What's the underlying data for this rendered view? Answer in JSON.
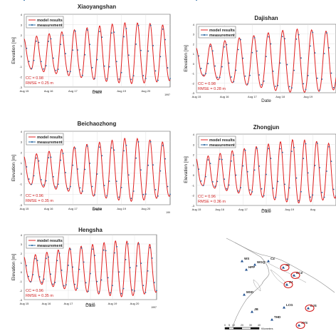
{
  "page": {
    "legend_model": "model results",
    "legend_measure": "measurement",
    "colors": {
      "model": "#e02020",
      "measure": "#2c6aa3",
      "cc_text": "#d02020",
      "grid": "#dcdcdc"
    }
  },
  "chart_data": [
    {
      "type": "line",
      "title": "Xiaoyangshan",
      "ylabel": "Elevation [m]",
      "xlabel": "Date",
      "year": "1997",
      "x_ticks": [
        "Aug 15",
        "Aug 16",
        "Aug 17",
        "Aug 18",
        "Aug 19",
        "Aug 20"
      ],
      "ylim": [
        -3,
        4
      ],
      "y_ticks": [
        "-3",
        "-2",
        "-1",
        "0",
        "1",
        "2",
        "3",
        "4"
      ],
      "cc": "CC = 0.98",
      "rmse": "RMSE = 0.25 m",
      "amp": [
        1.3,
        1.7,
        2.0,
        2.3,
        2.6,
        2.8,
        2.7,
        2.5
      ],
      "offset": 0.05,
      "phase": 0.0
    },
    {
      "type": "line",
      "title": "Dajishan",
      "ylabel": "Elevation [m]",
      "xlabel": "Date",
      "year": "",
      "x_ticks": [
        "Aug 15",
        "Aug 16",
        "Aug 17",
        "Aug 18",
        "Aug 19"
      ],
      "ylim": [
        -3,
        4
      ],
      "y_ticks": [
        "-3",
        "-2",
        "-1",
        "0",
        "1",
        "2",
        "3",
        "4"
      ],
      "cc": "CC = 0.98",
      "rmse": "RMSE = 0.28 m",
      "amp": [
        1.3,
        1.8,
        2.2,
        2.5,
        2.9,
        3.1,
        3.0,
        2.8
      ],
      "offset": 0.0,
      "phase": 0.2
    },
    {
      "type": "line",
      "title": "Beichaozhong",
      "ylabel": "Elevation [m]",
      "xlabel": "Date",
      "year": "199",
      "x_ticks": [
        "Aug 15",
        "Aug 16",
        "Aug 17",
        "Aug 18",
        "Aug 19",
        "Aug 20"
      ],
      "ylim": [
        -3,
        4
      ],
      "y_ticks": [
        "-3",
        "-2",
        "-1",
        "0",
        "1",
        "2",
        "3",
        "4"
      ],
      "cc": "CC = 0.96",
      "rmse": "RMSE = 0.35 m",
      "amp": [
        1.2,
        1.6,
        1.9,
        2.3,
        2.6,
        2.9,
        2.7,
        2.4
      ],
      "offset": 0.1,
      "phase": 0.1
    },
    {
      "type": "line",
      "title": "Zhongjun",
      "ylabel": "Elevation [m]",
      "xlabel": "Date",
      "year": "",
      "x_ticks": [
        "Aug 15",
        "Aug 16",
        "Aug 17",
        "Aug 18",
        "Aug 19",
        "Aug"
      ],
      "ylim": [
        -3,
        4
      ],
      "y_ticks": [
        "-3",
        "-2",
        "-1",
        "0",
        "1",
        "2",
        "3",
        "4"
      ],
      "cc": "CC = 0.96",
      "rmse": "RMSE = 0.36 m",
      "amp": [
        1.2,
        1.6,
        2.0,
        2.3,
        2.7,
        3.0,
        2.8,
        2.5
      ],
      "offset": 0.1,
      "phase": 0.15
    },
    {
      "type": "line",
      "title": "Hengsha",
      "ylabel": "Elevation [m]",
      "xlabel": "Date",
      "year": "1997",
      "x_ticks": [
        "Aug 15",
        "Aug 16",
        "Aug 17",
        "Aug 18",
        "Aug 19",
        "Aug 20"
      ],
      "ylim": [
        -3,
        4
      ],
      "y_ticks": [
        "-3",
        "-2",
        "-1",
        "0",
        "1",
        "2",
        "3",
        "4"
      ],
      "cc": "CC = 0.96",
      "rmse": "RMSE = 0.35 m",
      "amp": [
        1.2,
        1.6,
        2.0,
        2.3,
        2.6,
        2.9,
        2.7,
        2.4
      ],
      "offset": 0.1,
      "phase": 0.05
    }
  ],
  "map": {
    "stations": [
      "WS",
      "WGQ",
      "CZ",
      "HPP",
      "XS",
      "BCZ",
      "ZJ",
      "MSD",
      "LCG",
      "DJS",
      "JB",
      "THD",
      "XYS"
    ],
    "scale_labels": [
      "0",
      "5",
      "10",
      "20",
      "30",
      "40"
    ],
    "scale_unit": "Kilometers"
  }
}
